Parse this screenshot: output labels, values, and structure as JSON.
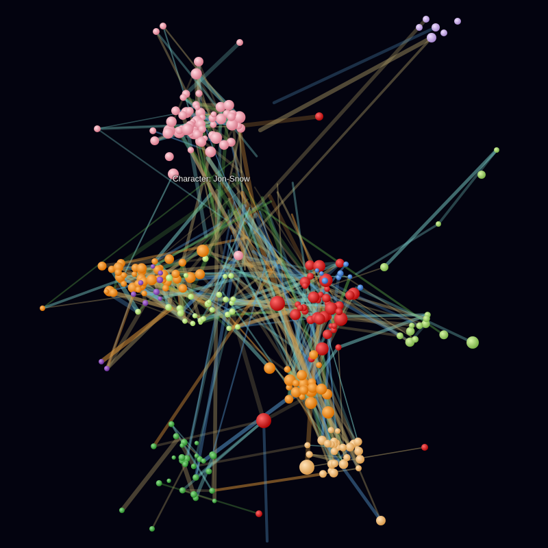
{
  "tooltip": {
    "text": "Character: Jon-Snow"
  },
  "colors": {
    "background": "#03030f",
    "link_tan": "#b7a46a",
    "link_green": "#5fae4a",
    "link_cyan": "#7fd6d0",
    "link_orange": "#e39a3a",
    "link_blue": "#5aa0d8",
    "node_pink": "#e89aa8",
    "node_orange": "#f08a12",
    "node_red": "#e01818",
    "node_green": "#3fae3f",
    "node_lightgreen": "#b6e07a",
    "node_sand": "#f2b86e",
    "node_lavender": "#c9a9e6",
    "node_purple": "#8a4fb8",
    "node_blue": "#3f7fd0",
    "node_olive": "#9ccf6a"
  }
}
